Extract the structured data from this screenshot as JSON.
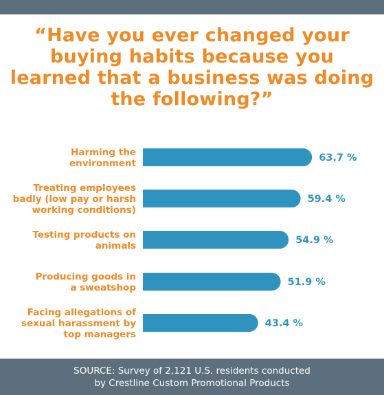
{
  "title": "“Have you ever changed your buying habits because you learned that a business was doing the following?”",
  "source": {
    "line1": "SOURCE:  Survey of 2,121 U.S. residents conducted",
    "line2": "by Crestline Custom Promotional Products"
  },
  "colors": {
    "bar": "#2e94bf",
    "label": "#f08a24",
    "band": "#5d6f7c"
  },
  "chart_data": {
    "type": "bar",
    "orientation": "horizontal",
    "categories": [
      [
        "Harming the",
        "environment"
      ],
      [
        "Treating employees",
        "badly (low pay or harsh",
        "working conditions)"
      ],
      [
        "Testing products on",
        "animals"
      ],
      [
        "Producing goods in",
        "a sweatshop"
      ],
      [
        "Facing allegations of",
        "sexual harassment by",
        "top managers"
      ]
    ],
    "values": [
      63.7,
      59.4,
      54.9,
      51.9,
      43.4
    ],
    "value_labels": [
      "63.7 %",
      "59.4 %",
      "54.9 %",
      "51.9 %",
      "43.4 %"
    ],
    "unit": "%",
    "grid": false,
    "legend": "none"
  }
}
